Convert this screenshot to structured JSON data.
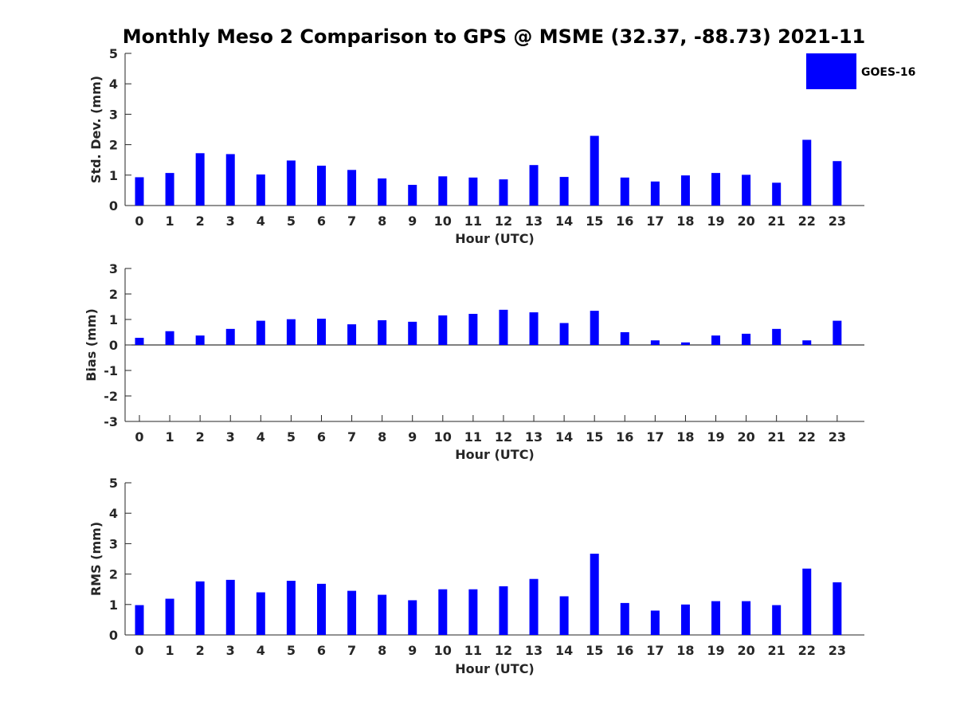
{
  "title": "Monthly Meso 2 Comparison to GPS @ MSME (32.37, -88.73) 2021-11",
  "legend": {
    "label": "GOES-16",
    "color": "#0000ff",
    "placement": "top-right"
  },
  "chart_data": [
    {
      "type": "bar",
      "name": "std-dev",
      "xlabel": "Hour (UTC)",
      "ylabel": "Std. Dev. (mm)",
      "ylim": [
        0,
        5
      ],
      "yticks": [
        "0",
        "1",
        "2",
        "3",
        "4",
        "5"
      ],
      "categories": [
        "0",
        "1",
        "2",
        "3",
        "4",
        "5",
        "6",
        "7",
        "8",
        "9",
        "10",
        "11",
        "12",
        "13",
        "14",
        "15",
        "16",
        "17",
        "18",
        "19",
        "20",
        "21",
        "22",
        "23"
      ],
      "series": [
        {
          "name": "GOES-16",
          "color": "#0000ff",
          "values": [
            0.93,
            1.07,
            1.72,
            1.69,
            1.02,
            1.48,
            1.31,
            1.17,
            0.89,
            0.68,
            0.96,
            0.92,
            0.86,
            1.33,
            0.94,
            2.29,
            0.92,
            0.79,
            0.99,
            1.07,
            1.01,
            0.75,
            2.16,
            1.46
          ]
        }
      ]
    },
    {
      "type": "bar",
      "name": "bias",
      "xlabel": "Hour (UTC)",
      "ylabel": "Bias (mm)",
      "ylim": [
        -3,
        3
      ],
      "yticks": [
        "-3",
        "-2",
        "-1",
        "0",
        "1",
        "2",
        "3"
      ],
      "categories": [
        "0",
        "1",
        "2",
        "3",
        "4",
        "5",
        "6",
        "7",
        "8",
        "9",
        "10",
        "11",
        "12",
        "13",
        "14",
        "15",
        "16",
        "17",
        "18",
        "19",
        "20",
        "21",
        "22",
        "23"
      ],
      "series": [
        {
          "name": "GOES-16",
          "color": "#0000ff",
          "values": [
            0.28,
            0.54,
            0.37,
            0.63,
            0.95,
            1.01,
            1.03,
            0.81,
            0.97,
            0.91,
            1.16,
            1.22,
            1.38,
            1.28,
            0.86,
            1.34,
            0.5,
            0.18,
            0.1,
            0.37,
            0.44,
            0.63,
            0.18,
            0.95
          ]
        }
      ]
    },
    {
      "type": "bar",
      "name": "rms",
      "xlabel": "Hour (UTC)",
      "ylabel": "RMS (mm)",
      "ylim": [
        0,
        5
      ],
      "yticks": [
        "0",
        "1",
        "2",
        "3",
        "4",
        "5"
      ],
      "categories": [
        "0",
        "1",
        "2",
        "3",
        "4",
        "5",
        "6",
        "7",
        "8",
        "9",
        "10",
        "11",
        "12",
        "13",
        "14",
        "15",
        "16",
        "17",
        "18",
        "19",
        "20",
        "21",
        "22",
        "23"
      ],
      "series": [
        {
          "name": "GOES-16",
          "color": "#0000ff",
          "values": [
            0.98,
            1.19,
            1.76,
            1.81,
            1.4,
            1.78,
            1.68,
            1.45,
            1.32,
            1.14,
            1.5,
            1.5,
            1.6,
            1.84,
            1.27,
            2.67,
            1.05,
            0.8,
            1.0,
            1.11,
            1.11,
            0.98,
            2.18,
            1.73
          ]
        }
      ]
    }
  ]
}
